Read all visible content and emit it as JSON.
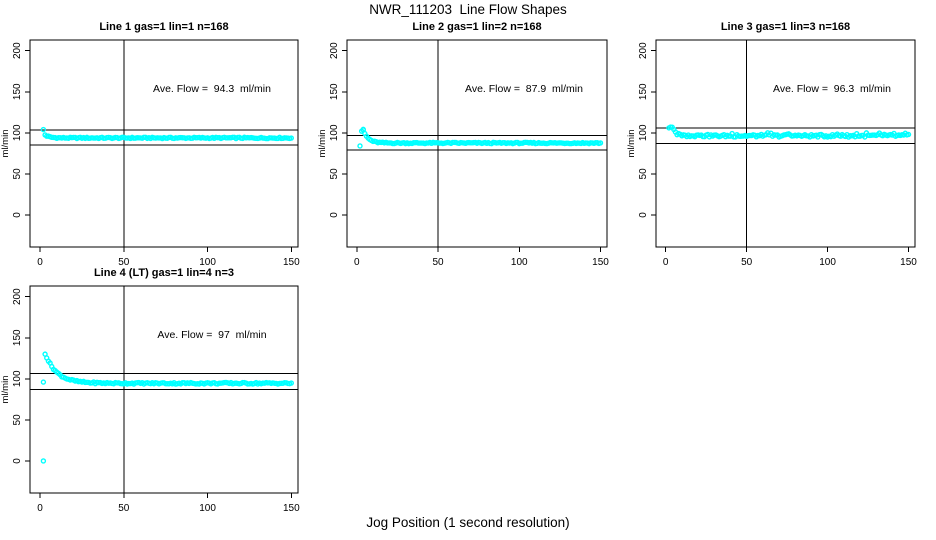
{
  "page": {
    "main_title": "NWR_111203  Line Flow Shapes",
    "x_axis_label": "Jog Position (1 second resolution)",
    "background_color": "#ffffff",
    "point_color": "#00ffff",
    "axis_color": "#000000"
  },
  "chart_data": [
    {
      "type": "scatter",
      "title": "Line 1 gas=1 lin=1 n=168",
      "annotation": "Ave. Flow =  94.3  ml/min",
      "ave_flow_ml_min": 94.3,
      "n": 168,
      "ylabel": "ml/min",
      "x_ticks": [
        0,
        50,
        100,
        150
      ],
      "y_ticks": [
        0,
        50,
        100,
        150,
        200
      ],
      "x_domain": [
        -6,
        154
      ],
      "y_domain": [
        -39,
        213
      ],
      "grid": false,
      "vline_x": 50,
      "hlines": [
        103.7,
        84.9
      ],
      "series": {
        "x_start": 3,
        "x_end": 150,
        "start_value": 97.5,
        "steady_value": 93.8,
        "decay_tau": 2.5,
        "noise_amp": 0.8,
        "seed": 1,
        "bump_amp": 0,
        "bump_thresh": 1,
        "extra_points": [
          [
            2,
            104
          ]
        ]
      }
    },
    {
      "type": "scatter",
      "title": "Line 2 gas=1 lin=2 n=168",
      "annotation": "Ave. Flow =  87.9  ml/min",
      "ave_flow_ml_min": 87.9,
      "n": 168,
      "ylabel": "ml/min",
      "x_ticks": [
        0,
        50,
        100,
        150
      ],
      "y_ticks": [
        0,
        50,
        100,
        150,
        200
      ],
      "x_domain": [
        -6,
        154
      ],
      "y_domain": [
        -39,
        213
      ],
      "grid": false,
      "vline_x": 50,
      "hlines": [
        96.7,
        79.1
      ],
      "series": {
        "x_start": 4,
        "x_end": 150,
        "start_value": 103.5,
        "steady_value": 87.6,
        "decay_tau": 3.0,
        "noise_amp": 0.8,
        "seed": 2,
        "bump_amp": 0,
        "bump_thresh": 1,
        "extra_points": [
          [
            2,
            84
          ],
          [
            3,
            102
          ],
          [
            4,
            103.5
          ]
        ]
      }
    },
    {
      "type": "scatter",
      "title": "Line 3 gas=1 lin=3 n=168",
      "annotation": "Ave. Flow =  96.3  ml/min",
      "ave_flow_ml_min": 96.3,
      "n": 168,
      "ylabel": "ml/min",
      "x_ticks": [
        0,
        50,
        100,
        150
      ],
      "y_ticks": [
        0,
        50,
        100,
        150,
        200
      ],
      "x_domain": [
        -6,
        154
      ],
      "y_domain": [
        -39,
        213
      ],
      "grid": false,
      "vline_x": 50,
      "hlines": [
        105.9,
        86.7
      ],
      "series": {
        "x_start": 4,
        "x_end": 150,
        "start_value": 106.5,
        "steady_value": 96.4,
        "decay_tau": 2.2,
        "noise_amp": 1.6,
        "seed": 3,
        "bump_amp": 2.2,
        "bump_thresh": 0.7,
        "extra_points": [
          [
            2,
            106
          ],
          [
            3,
            107
          ]
        ]
      }
    },
    {
      "type": "scatter",
      "title": "Line 4 (LT) gas=1 lin=4 n=3",
      "annotation": "Ave. Flow =  97  ml/min",
      "ave_flow_ml_min": 97,
      "n": 3,
      "ylabel": "ml/min",
      "x_ticks": [
        0,
        50,
        100,
        150
      ],
      "y_ticks": [
        0,
        50,
        100,
        150,
        200
      ],
      "x_domain": [
        -6,
        154
      ],
      "y_domain": [
        -39,
        213
      ],
      "grid": false,
      "vline_x": 50,
      "hlines": [
        106.7,
        87.3
      ],
      "series": {
        "x_start": 3,
        "x_end": 150,
        "start_value": 131,
        "steady_value": 94.6,
        "decay_tau": 7.0,
        "noise_amp": 1.0,
        "seed": 4,
        "bump_amp": 0,
        "bump_thresh": 1,
        "extra_points": [
          [
            2,
            0
          ],
          [
            2,
            96
          ]
        ]
      }
    }
  ]
}
